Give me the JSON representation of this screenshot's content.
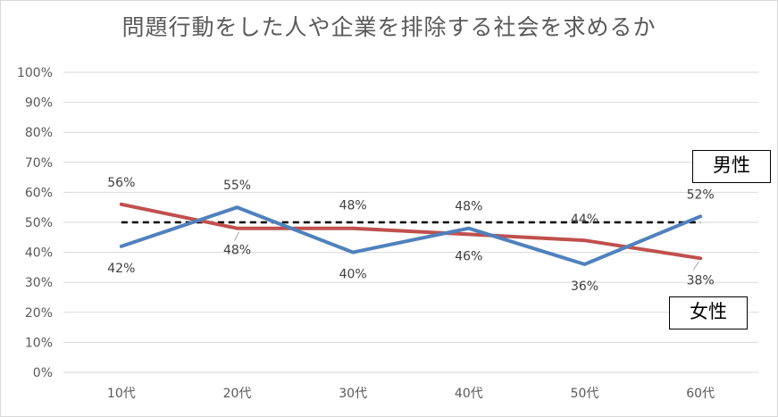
{
  "chart_data": {
    "type": "line",
    "title": "問題行動をした人や企業を排除する社会を求めるか",
    "categories": [
      "10代",
      "20代",
      "30代",
      "40代",
      "50代",
      "60代"
    ],
    "y_tick_labels": [
      "0%",
      "10%",
      "20%",
      "30%",
      "40%",
      "50%",
      "60%",
      "70%",
      "80%",
      "90%",
      "100%"
    ],
    "ylim": [
      0,
      100
    ],
    "grid": true,
    "series": [
      {
        "name": "男性",
        "color": "#4f81bd",
        "values": [
          42,
          55,
          40,
          48,
          36,
          52
        ],
        "labels": [
          "42%",
          "55%",
          "40%",
          "48%",
          "36%",
          "52%"
        ]
      },
      {
        "name": "女性",
        "color": "#c0504d",
        "values": [
          56,
          48,
          48,
          46,
          44,
          38
        ],
        "labels": [
          "56%",
          "48%",
          "48%",
          "46%",
          "44%",
          "38%"
        ]
      }
    ],
    "reference_line": {
      "value": 50,
      "style": "dashed",
      "color": "#000000"
    },
    "legend_placement": "right, next to series ends"
  }
}
